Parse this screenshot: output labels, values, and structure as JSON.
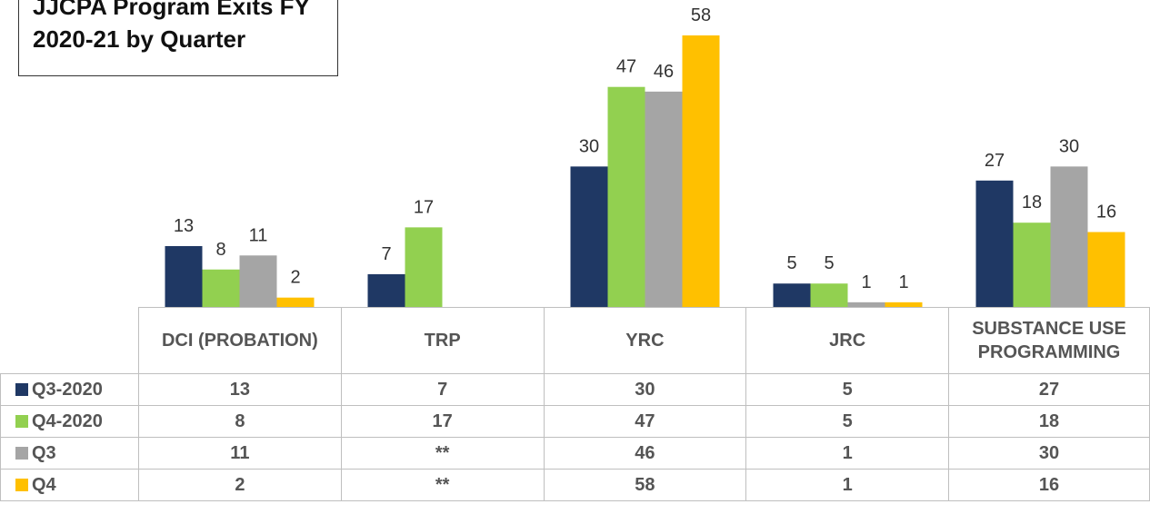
{
  "chart_data": {
    "type": "bar",
    "title": "JJCPA Program Exits FY 2020-21 by Quarter",
    "categories": [
      "DCI (PROBATION)",
      "TRP",
      "YRC",
      "JRC",
      "SUBSTANCE USE PROGRAMMING"
    ],
    "series": [
      {
        "name": "Q3-2020",
        "color": "#1f3864",
        "values": [
          13,
          7,
          30,
          5,
          27
        ]
      },
      {
        "name": "Q4-2020",
        "color": "#92d050",
        "values": [
          8,
          17,
          47,
          5,
          18
        ]
      },
      {
        "name": "Q3",
        "color": "#a5a5a5",
        "values": [
          11,
          null,
          46,
          1,
          30
        ]
      },
      {
        "name": "Q4",
        "color": "#ffc000",
        "values": [
          2,
          null,
          58,
          1,
          16
        ]
      }
    ],
    "missing_label": "**",
    "ylim": [
      0,
      58
    ],
    "grid": false
  }
}
